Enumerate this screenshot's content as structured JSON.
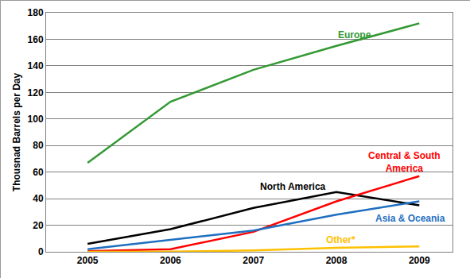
{
  "chart_data": {
    "type": "line",
    "y_label": "Thousnad Barrels per Day",
    "x": [
      2005,
      2006,
      2007,
      2008,
      2009
    ],
    "xlim": [
      2004.5,
      2009.4
    ],
    "xticks": [
      2005,
      2006,
      2007,
      2008,
      2009
    ],
    "ylim": [
      0,
      180
    ],
    "yticks": [
      0,
      20,
      40,
      60,
      80,
      100,
      120,
      140,
      160,
      180
    ],
    "grid": true,
    "series": [
      {
        "name": "Europe",
        "color": "#339933",
        "values": [
          67,
          113,
          137,
          155,
          172
        ]
      },
      {
        "name": "North America",
        "color": "#000000",
        "values": [
          6,
          17,
          33,
          45,
          35
        ]
      },
      {
        "name": "Central & South America",
        "color": "#ff0000",
        "values": [
          0.5,
          2,
          15,
          38,
          57
        ]
      },
      {
        "name": "Asia & Oceania",
        "color": "#1f6fc0",
        "values": [
          2,
          9,
          16,
          28,
          38
        ]
      },
      {
        "name": "Other*",
        "color": "#ffc000",
        "values": [
          0,
          0.2,
          1,
          3,
          4
        ]
      }
    ]
  }
}
